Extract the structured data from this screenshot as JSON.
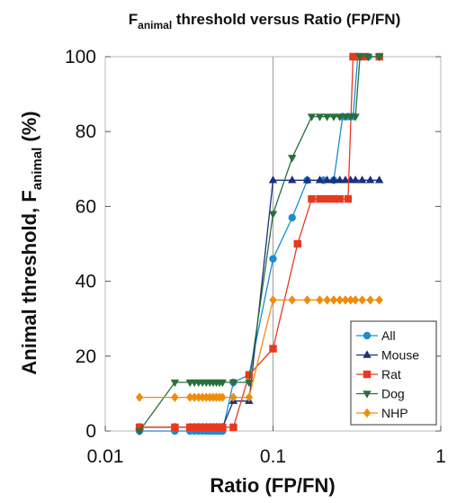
{
  "chart_data": {
    "type": "line",
    "title_main": "F",
    "title_sub": "animal",
    "title_rest": " threshold versus Ratio (FP/FN)",
    "xlabel": "Ratio (FP/FN)",
    "ylabel_main": "Animal threshold, F",
    "ylabel_sub": "animal",
    "ylabel_tail": " (%)",
    "x_scale": "log",
    "xlim": [
      0.01,
      1
    ],
    "ylim": [
      0,
      100
    ],
    "x_ticks": [
      {
        "value": 0.01,
        "label": "0.01"
      },
      {
        "value": 0.1,
        "label": "0.1"
      },
      {
        "value": 1,
        "label": "1"
      }
    ],
    "y_ticks": [
      {
        "value": 0,
        "label": "0"
      },
      {
        "value": 20,
        "label": "20"
      },
      {
        "value": 40,
        "label": "40"
      },
      {
        "value": 60,
        "label": "60"
      },
      {
        "value": 80,
        "label": "80"
      },
      {
        "value": 100,
        "label": "100"
      }
    ],
    "reference_line_x": 0.1,
    "legend_position": "bottom-right",
    "series": [
      {
        "name": "All",
        "color": "#1a8ed0",
        "marker": "circle",
        "points": [
          [
            0.016,
            0
          ],
          [
            0.026,
            0
          ],
          [
            0.032,
            0
          ],
          [
            0.034,
            0
          ],
          [
            0.036,
            0
          ],
          [
            0.038,
            0
          ],
          [
            0.04,
            0
          ],
          [
            0.042,
            0
          ],
          [
            0.044,
            0
          ],
          [
            0.046,
            0
          ],
          [
            0.048,
            0
          ],
          [
            0.05,
            0
          ],
          [
            0.058,
            13
          ],
          [
            0.072,
            15
          ],
          [
            0.1,
            46
          ],
          [
            0.13,
            57
          ],
          [
            0.16,
            67
          ],
          [
            0.2,
            67
          ],
          [
            0.23,
            67
          ],
          [
            0.26,
            84
          ],
          [
            0.28,
            84
          ],
          [
            0.3,
            84
          ],
          [
            0.32,
            100
          ],
          [
            0.37,
            100
          ],
          [
            0.43,
            100
          ]
        ]
      },
      {
        "name": "Mouse",
        "color": "#1a2f80",
        "marker": "triangle-up",
        "points": [
          [
            0.016,
            1
          ],
          [
            0.026,
            1
          ],
          [
            0.032,
            1
          ],
          [
            0.034,
            1
          ],
          [
            0.036,
            1
          ],
          [
            0.038,
            1
          ],
          [
            0.04,
            1
          ],
          [
            0.042,
            1
          ],
          [
            0.044,
            1
          ],
          [
            0.046,
            1
          ],
          [
            0.048,
            1
          ],
          [
            0.05,
            1
          ],
          [
            0.058,
            8
          ],
          [
            0.072,
            8
          ],
          [
            0.1,
            67
          ],
          [
            0.13,
            67
          ],
          [
            0.16,
            67
          ],
          [
            0.19,
            67
          ],
          [
            0.21,
            67
          ],
          [
            0.23,
            67
          ],
          [
            0.25,
            67
          ],
          [
            0.27,
            67
          ],
          [
            0.29,
            67
          ],
          [
            0.31,
            67
          ],
          [
            0.34,
            67
          ],
          [
            0.38,
            67
          ],
          [
            0.43,
            67
          ]
        ]
      },
      {
        "name": "Rat",
        "color": "#e8391f",
        "marker": "square",
        "points": [
          [
            0.016,
            1
          ],
          [
            0.026,
            1
          ],
          [
            0.032,
            1
          ],
          [
            0.034,
            1
          ],
          [
            0.036,
            1
          ],
          [
            0.038,
            1
          ],
          [
            0.04,
            1
          ],
          [
            0.042,
            1
          ],
          [
            0.044,
            1
          ],
          [
            0.046,
            1
          ],
          [
            0.048,
            1
          ],
          [
            0.05,
            1
          ],
          [
            0.058,
            1
          ],
          [
            0.072,
            15
          ],
          [
            0.1,
            22
          ],
          [
            0.14,
            50
          ],
          [
            0.17,
            62
          ],
          [
            0.19,
            62
          ],
          [
            0.21,
            62
          ],
          [
            0.23,
            62
          ],
          [
            0.25,
            62
          ],
          [
            0.28,
            62
          ],
          [
            0.3,
            100
          ],
          [
            0.32,
            100
          ],
          [
            0.35,
            100
          ],
          [
            0.43,
            100
          ]
        ]
      },
      {
        "name": "Dog",
        "color": "#2a6e3a",
        "marker": "triangle-down",
        "points": [
          [
            0.016,
            0
          ],
          [
            0.026,
            13
          ],
          [
            0.032,
            13
          ],
          [
            0.034,
            13
          ],
          [
            0.036,
            13
          ],
          [
            0.038,
            13
          ],
          [
            0.04,
            13
          ],
          [
            0.042,
            13
          ],
          [
            0.044,
            13
          ],
          [
            0.046,
            13
          ],
          [
            0.048,
            13
          ],
          [
            0.05,
            13
          ],
          [
            0.058,
            13
          ],
          [
            0.072,
            13
          ],
          [
            0.1,
            58
          ],
          [
            0.13,
            73
          ],
          [
            0.17,
            84
          ],
          [
            0.19,
            84
          ],
          [
            0.21,
            84
          ],
          [
            0.23,
            84
          ],
          [
            0.25,
            84
          ],
          [
            0.27,
            84
          ],
          [
            0.29,
            84
          ],
          [
            0.31,
            84
          ],
          [
            0.33,
            100
          ],
          [
            0.37,
            100
          ],
          [
            0.43,
            100
          ]
        ]
      },
      {
        "name": "NHP",
        "color": "#f08c0a",
        "marker": "diamond",
        "points": [
          [
            0.016,
            9
          ],
          [
            0.026,
            9
          ],
          [
            0.032,
            9
          ],
          [
            0.034,
            9
          ],
          [
            0.036,
            9
          ],
          [
            0.038,
            9
          ],
          [
            0.04,
            9
          ],
          [
            0.042,
            9
          ],
          [
            0.044,
            9
          ],
          [
            0.046,
            9
          ],
          [
            0.048,
            9
          ],
          [
            0.05,
            9
          ],
          [
            0.058,
            9
          ],
          [
            0.072,
            9
          ],
          [
            0.1,
            35
          ],
          [
            0.13,
            35
          ],
          [
            0.16,
            35
          ],
          [
            0.19,
            35
          ],
          [
            0.21,
            35
          ],
          [
            0.23,
            35
          ],
          [
            0.25,
            35
          ],
          [
            0.27,
            35
          ],
          [
            0.29,
            35
          ],
          [
            0.31,
            35
          ],
          [
            0.34,
            35
          ],
          [
            0.38,
            35
          ],
          [
            0.43,
            35
          ]
        ]
      }
    ]
  }
}
